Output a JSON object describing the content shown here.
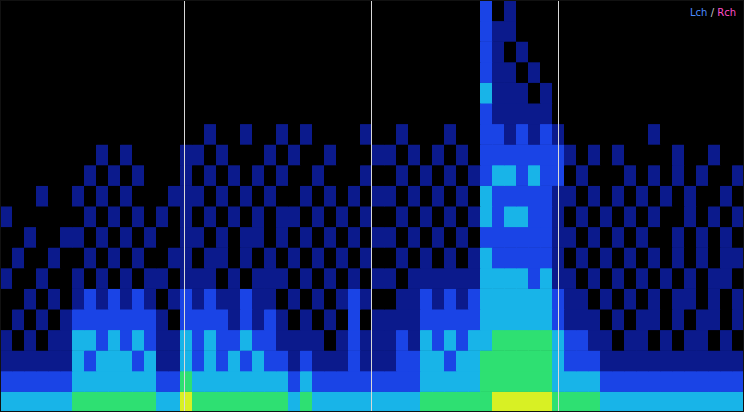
{
  "chart_data": {
    "type": "heatmap",
    "channels": [
      {
        "name": "Lch",
        "color": "#4b8cff"
      },
      {
        "name": "Rch",
        "color": "#ff4fc8"
      }
    ],
    "separator": "/",
    "legend": "top-right",
    "tick_labels": false,
    "xlim": [
      0,
      62
    ],
    "ylim": [
      0,
      20
    ],
    "zlim": [
      0,
      5
    ],
    "markers": [
      15.33,
      30.92,
      46.5
    ],
    "cells": [
      [
        3,
        3,
        3,
        3,
        3,
        3,
        4,
        4,
        4,
        4,
        4,
        4,
        4,
        3,
        3,
        5,
        4,
        4,
        4,
        4,
        4,
        4,
        4,
        4,
        3,
        4,
        3,
        3,
        3,
        3,
        3,
        3,
        3,
        3,
        3,
        4,
        4,
        4,
        4,
        4,
        4,
        5,
        5,
        5,
        5,
        5,
        4,
        4,
        4,
        4,
        3,
        3,
        3,
        3,
        3,
        3,
        3,
        3,
        3,
        3,
        3,
        3
      ],
      [
        2,
        2,
        2,
        2,
        2,
        2,
        3,
        3,
        3,
        3,
        3,
        3,
        3,
        2,
        2,
        4,
        3,
        3,
        3,
        3,
        3,
        3,
        3,
        3,
        2,
        3,
        2,
        2,
        2,
        2,
        2,
        2,
        2,
        2,
        2,
        3,
        3,
        3,
        3,
        3,
        4,
        4,
        4,
        4,
        4,
        4,
        3,
        3,
        3,
        3,
        2,
        2,
        2,
        2,
        2,
        2,
        2,
        2,
        2,
        2,
        2,
        2
      ],
      [
        1,
        1,
        1,
        1,
        1,
        1,
        3,
        2,
        3,
        3,
        3,
        2,
        3,
        1,
        1,
        3,
        2,
        3,
        2,
        3,
        2,
        3,
        2,
        2,
        1,
        2,
        1,
        1,
        1,
        2,
        1,
        1,
        1,
        2,
        2,
        3,
        3,
        2,
        3,
        3,
        4,
        4,
        4,
        4,
        4,
        4,
        3,
        2,
        2,
        2,
        1,
        1,
        1,
        1,
        1,
        1,
        1,
        1,
        1,
        1,
        1,
        1
      ],
      [
        1,
        0,
        1,
        0,
        1,
        1,
        3,
        3,
        2,
        3,
        2,
        3,
        2,
        1,
        1,
        3,
        2,
        3,
        2,
        2,
        3,
        2,
        2,
        1,
        1,
        1,
        1,
        0,
        1,
        2,
        1,
        1,
        1,
        2,
        1,
        3,
        2,
        3,
        2,
        3,
        3,
        4,
        4,
        4,
        4,
        4,
        3,
        2,
        2,
        1,
        1,
        0,
        1,
        1,
        0,
        1,
        0,
        1,
        1,
        0,
        1,
        0
      ],
      [
        0,
        1,
        0,
        1,
        0,
        1,
        2,
        2,
        2,
        2,
        2,
        2,
        2,
        1,
        0,
        2,
        2,
        2,
        2,
        1,
        2,
        1,
        2,
        1,
        0,
        1,
        0,
        1,
        0,
        2,
        0,
        1,
        1,
        1,
        1,
        2,
        2,
        2,
        2,
        2,
        3,
        3,
        3,
        3,
        3,
        3,
        2,
        1,
        1,
        1,
        0,
        1,
        0,
        1,
        1,
        0,
        1,
        0,
        1,
        1,
        0,
        1
      ],
      [
        0,
        0,
        1,
        0,
        1,
        0,
        1,
        2,
        1,
        2,
        1,
        2,
        1,
        0,
        1,
        2,
        1,
        2,
        1,
        1,
        2,
        1,
        1,
        0,
        1,
        0,
        1,
        0,
        1,
        2,
        1,
        0,
        0,
        1,
        1,
        2,
        1,
        2,
        1,
        2,
        3,
        3,
        3,
        3,
        3,
        3,
        2,
        1,
        1,
        0,
        1,
        0,
        1,
        0,
        1,
        0,
        1,
        1,
        0,
        1,
        0,
        1
      ],
      [
        1,
        0,
        0,
        1,
        0,
        0,
        1,
        0,
        1,
        0,
        1,
        0,
        1,
        1,
        0,
        1,
        1,
        1,
        0,
        1,
        0,
        1,
        1,
        1,
        0,
        1,
        0,
        1,
        0,
        1,
        0,
        1,
        1,
        0,
        1,
        1,
        1,
        1,
        1,
        1,
        3,
        3,
        3,
        3,
        2,
        3,
        1,
        1,
        0,
        1,
        0,
        1,
        0,
        1,
        0,
        1,
        0,
        1,
        0,
        1,
        1,
        0
      ],
      [
        0,
        1,
        0,
        0,
        1,
        0,
        0,
        1,
        0,
        1,
        0,
        1,
        0,
        0,
        1,
        1,
        0,
        1,
        1,
        0,
        1,
        0,
        1,
        0,
        1,
        0,
        1,
        0,
        1,
        0,
        1,
        0,
        0,
        1,
        0,
        1,
        0,
        1,
        0,
        1,
        3,
        2,
        2,
        2,
        2,
        2,
        1,
        0,
        1,
        0,
        1,
        0,
        1,
        0,
        1,
        0,
        1,
        0,
        1,
        0,
        1,
        1
      ],
      [
        0,
        0,
        1,
        0,
        0,
        1,
        1,
        0,
        1,
        0,
        1,
        0,
        1,
        0,
        0,
        1,
        1,
        0,
        1,
        0,
        1,
        1,
        0,
        1,
        0,
        1,
        0,
        1,
        0,
        1,
        0,
        1,
        1,
        0,
        1,
        0,
        1,
        0,
        1,
        0,
        2,
        2,
        2,
        2,
        2,
        2,
        1,
        1,
        0,
        1,
        0,
        1,
        0,
        1,
        0,
        0,
        1,
        0,
        1,
        0,
        1,
        0
      ],
      [
        1,
        0,
        0,
        0,
        0,
        0,
        0,
        1,
        0,
        1,
        0,
        1,
        0,
        1,
        0,
        1,
        0,
        1,
        0,
        1,
        0,
        1,
        0,
        1,
        1,
        0,
        1,
        0,
        1,
        0,
        1,
        0,
        0,
        1,
        0,
        1,
        0,
        1,
        0,
        1,
        3,
        2,
        3,
        3,
        2,
        2,
        1,
        0,
        1,
        0,
        1,
        0,
        1,
        0,
        1,
        0,
        0,
        1,
        0,
        1,
        0,
        1
      ],
      [
        0,
        0,
        0,
        1,
        0,
        0,
        1,
        0,
        1,
        0,
        1,
        0,
        0,
        0,
        1,
        1,
        1,
        0,
        1,
        0,
        1,
        0,
        1,
        0,
        0,
        1,
        0,
        1,
        0,
        1,
        0,
        1,
        1,
        0,
        1,
        0,
        1,
        0,
        1,
        0,
        3,
        2,
        2,
        2,
        2,
        2,
        1,
        1,
        0,
        1,
        0,
        1,
        0,
        1,
        0,
        1,
        0,
        1,
        0,
        0,
        1,
        0
      ],
      [
        0,
        0,
        0,
        0,
        0,
        0,
        0,
        1,
        0,
        1,
        0,
        1,
        0,
        0,
        0,
        1,
        0,
        1,
        0,
        1,
        0,
        1,
        0,
        1,
        0,
        0,
        1,
        0,
        0,
        0,
        1,
        0,
        0,
        1,
        0,
        1,
        0,
        1,
        0,
        1,
        2,
        3,
        3,
        2,
        3,
        2,
        2,
        0,
        1,
        0,
        0,
        0,
        1,
        0,
        1,
        0,
        1,
        0,
        1,
        0,
        0,
        1
      ],
      [
        0,
        0,
        0,
        0,
        0,
        0,
        0,
        0,
        1,
        0,
        1,
        0,
        0,
        0,
        0,
        1,
        1,
        0,
        1,
        0,
        0,
        0,
        1,
        0,
        1,
        0,
        0,
        1,
        0,
        0,
        0,
        1,
        1,
        0,
        1,
        0,
        1,
        0,
        1,
        0,
        2,
        2,
        2,
        2,
        2,
        2,
        2,
        1,
        0,
        1,
        0,
        1,
        0,
        0,
        0,
        0,
        1,
        0,
        0,
        1,
        0,
        0
      ],
      [
        0,
        0,
        0,
        0,
        0,
        0,
        0,
        0,
        0,
        0,
        0,
        0,
        0,
        0,
        0,
        0,
        0,
        1,
        0,
        0,
        1,
        0,
        0,
        1,
        0,
        1,
        0,
        0,
        0,
        0,
        1,
        0,
        0,
        1,
        0,
        0,
        0,
        1,
        0,
        0,
        2,
        2,
        1,
        2,
        1,
        2,
        1,
        0,
        0,
        0,
        0,
        0,
        0,
        0,
        1,
        0,
        0,
        0,
        0,
        0,
        0,
        0
      ],
      [
        0,
        0,
        0,
        0,
        0,
        0,
        0,
        0,
        0,
        0,
        0,
        0,
        0,
        0,
        0,
        0,
        0,
        0,
        0,
        0,
        0,
        0,
        0,
        0,
        0,
        0,
        0,
        0,
        0,
        0,
        0,
        0,
        0,
        0,
        0,
        0,
        0,
        0,
        0,
        0,
        2,
        1,
        1,
        1,
        1,
        1,
        0,
        0,
        0,
        0,
        0,
        0,
        0,
        0,
        0,
        0,
        0,
        0,
        0,
        0,
        0,
        0
      ],
      [
        0,
        0,
        0,
        0,
        0,
        0,
        0,
        0,
        0,
        0,
        0,
        0,
        0,
        0,
        0,
        0,
        0,
        0,
        0,
        0,
        0,
        0,
        0,
        0,
        0,
        0,
        0,
        0,
        0,
        0,
        0,
        0,
        0,
        0,
        0,
        0,
        0,
        0,
        0,
        0,
        3,
        1,
        1,
        1,
        0,
        1,
        0,
        0,
        0,
        0,
        0,
        0,
        0,
        0,
        0,
        0,
        0,
        0,
        0,
        0,
        0,
        0
      ],
      [
        0,
        0,
        0,
        0,
        0,
        0,
        0,
        0,
        0,
        0,
        0,
        0,
        0,
        0,
        0,
        0,
        0,
        0,
        0,
        0,
        0,
        0,
        0,
        0,
        0,
        0,
        0,
        0,
        0,
        0,
        0,
        0,
        0,
        0,
        0,
        0,
        0,
        0,
        0,
        0,
        2,
        1,
        1,
        0,
        1,
        0,
        0,
        0,
        0,
        0,
        0,
        0,
        0,
        0,
        0,
        0,
        0,
        0,
        0,
        0,
        0,
        0
      ],
      [
        0,
        0,
        0,
        0,
        0,
        0,
        0,
        0,
        0,
        0,
        0,
        0,
        0,
        0,
        0,
        0,
        0,
        0,
        0,
        0,
        0,
        0,
        0,
        0,
        0,
        0,
        0,
        0,
        0,
        0,
        0,
        0,
        0,
        0,
        0,
        0,
        0,
        0,
        0,
        0,
        2,
        1,
        0,
        1,
        0,
        0,
        0,
        0,
        0,
        0,
        0,
        0,
        0,
        0,
        0,
        0,
        0,
        0,
        0,
        0,
        0,
        0
      ],
      [
        0,
        0,
        0,
        0,
        0,
        0,
        0,
        0,
        0,
        0,
        0,
        0,
        0,
        0,
        0,
        0,
        0,
        0,
        0,
        0,
        0,
        0,
        0,
        0,
        0,
        0,
        0,
        0,
        0,
        0,
        0,
        0,
        0,
        0,
        0,
        0,
        0,
        0,
        0,
        0,
        2,
        1,
        1,
        0,
        0,
        0,
        0,
        0,
        0,
        0,
        0,
        0,
        0,
        0,
        0,
        0,
        0,
        0,
        0,
        0,
        0,
        0
      ],
      [
        0,
        0,
        0,
        0,
        0,
        0,
        0,
        0,
        0,
        0,
        0,
        0,
        0,
        0,
        0,
        0,
        0,
        0,
        0,
        0,
        0,
        0,
        0,
        0,
        0,
        0,
        0,
        0,
        0,
        0,
        0,
        0,
        0,
        0,
        0,
        0,
        0,
        0,
        0,
        0,
        2,
        0,
        1,
        0,
        0,
        0,
        0,
        0,
        0,
        0,
        0,
        0,
        0,
        0,
        0,
        0,
        0,
        0,
        0,
        0,
        0,
        0
      ]
    ]
  }
}
